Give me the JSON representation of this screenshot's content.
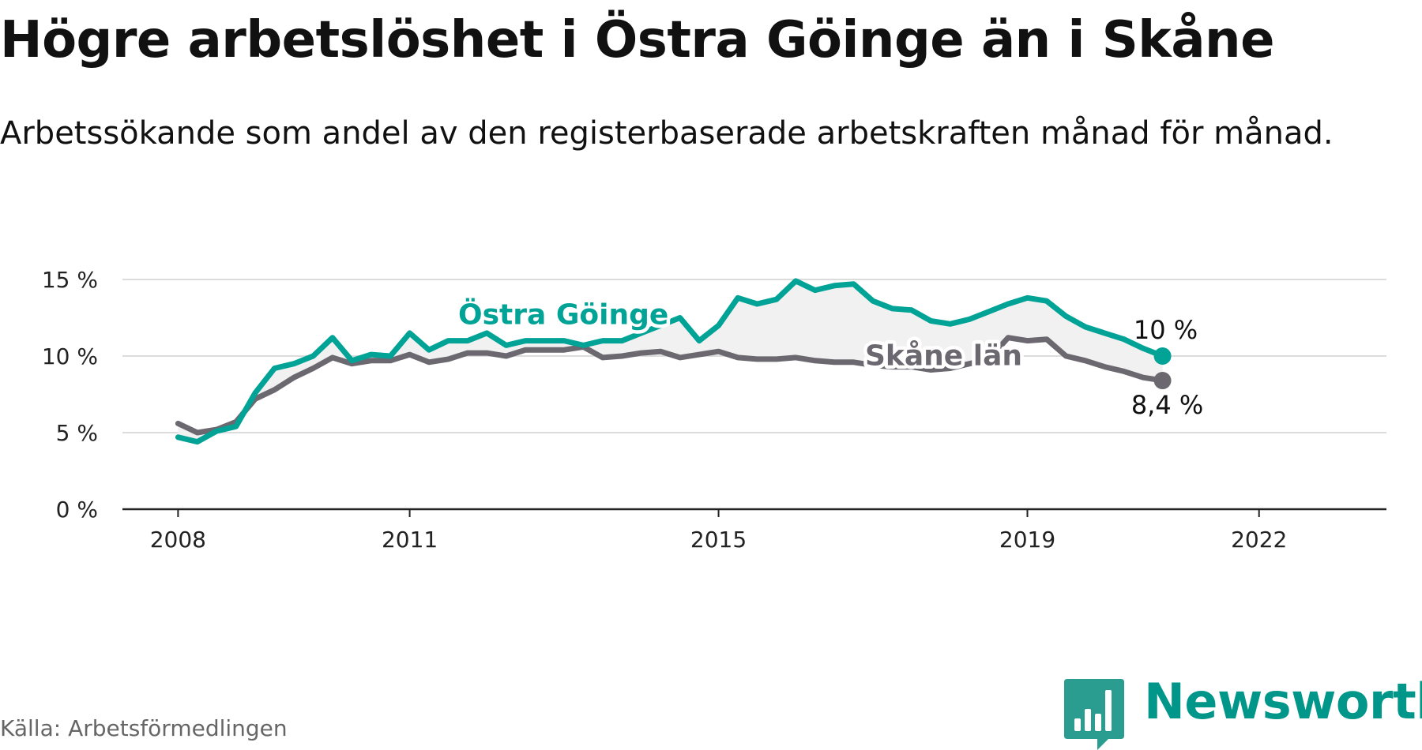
{
  "header": {
    "title": "Högre arbetslöshet i Östra Göinge än i Skåne",
    "subtitle": "Arbetssökande som andel av den registerbaserade arbetskraften månad för månad."
  },
  "footer": {
    "source": "Källa: Arbetsförmedlingen",
    "brand": "Newsworthy"
  },
  "colors": {
    "series_a": "#00a396",
    "series_b": "#6b6870",
    "band": "#f1f1f1",
    "grid": "#dcdcdc",
    "axis": "#222222",
    "brand": "#00968a"
  },
  "chart_data": {
    "type": "line",
    "title": "Högre arbetslöshet i Östra Göinge än i Skåne",
    "subtitle": "Arbetssökande som andel av den registerbaserade arbetskraften månad för månad.",
    "xlabel": "",
    "ylabel": "",
    "ylim": [
      0,
      15
    ],
    "xlim": [
      2007.28,
      2023.65
    ],
    "x_start": 2008.0,
    "x_step": 0.25,
    "x_ticks": [
      2008,
      2011,
      2015,
      2019,
      2022
    ],
    "x_tick_labels": [
      "2008",
      "2011",
      "2015",
      "2019",
      "2022"
    ],
    "y_ticks": [
      0,
      5,
      10,
      15
    ],
    "y_tick_labels": [
      "0 %",
      "5 %",
      "10 %",
      "15 %"
    ],
    "grid": true,
    "series": [
      {
        "name": "Östra Göinge",
        "color": "#00a396",
        "end_label": "10 %",
        "values": [
          4.7,
          4.4,
          5.1,
          5.4,
          7.6,
          9.2,
          9.5,
          10.0,
          11.2,
          9.7,
          10.1,
          10.0,
          11.5,
          10.4,
          11.0,
          11.0,
          11.5,
          10.7,
          11.0,
          11.0,
          11.0,
          10.7,
          11.0,
          11.0,
          11.5,
          12.0,
          12.5,
          11.0,
          12.0,
          13.8,
          13.4,
          13.7,
          14.9,
          14.3,
          14.6,
          14.7,
          13.6,
          13.1,
          13.0,
          12.3,
          12.1,
          12.4,
          12.9,
          13.4,
          13.8,
          13.6,
          12.6,
          11.9,
          11.5,
          11.1,
          10.5,
          10.0
        ]
      },
      {
        "name": "Skåne län",
        "color": "#6b6870",
        "end_label": "8,4 %",
        "values": [
          5.6,
          5.0,
          5.2,
          5.7,
          7.2,
          7.8,
          8.6,
          9.2,
          9.9,
          9.5,
          9.7,
          9.7,
          10.1,
          9.6,
          9.8,
          10.2,
          10.2,
          10.0,
          10.4,
          10.4,
          10.4,
          10.6,
          9.9,
          10.0,
          10.2,
          10.3,
          9.9,
          10.1,
          10.3,
          9.9,
          9.8,
          9.8,
          9.9,
          9.7,
          9.6,
          9.6,
          9.4,
          9.3,
          9.3,
          9.1,
          9.2,
          9.5,
          9.8,
          11.2,
          11.0,
          11.1,
          10.0,
          9.7,
          9.3,
          9.0,
          8.6,
          8.4
        ]
      }
    ]
  }
}
